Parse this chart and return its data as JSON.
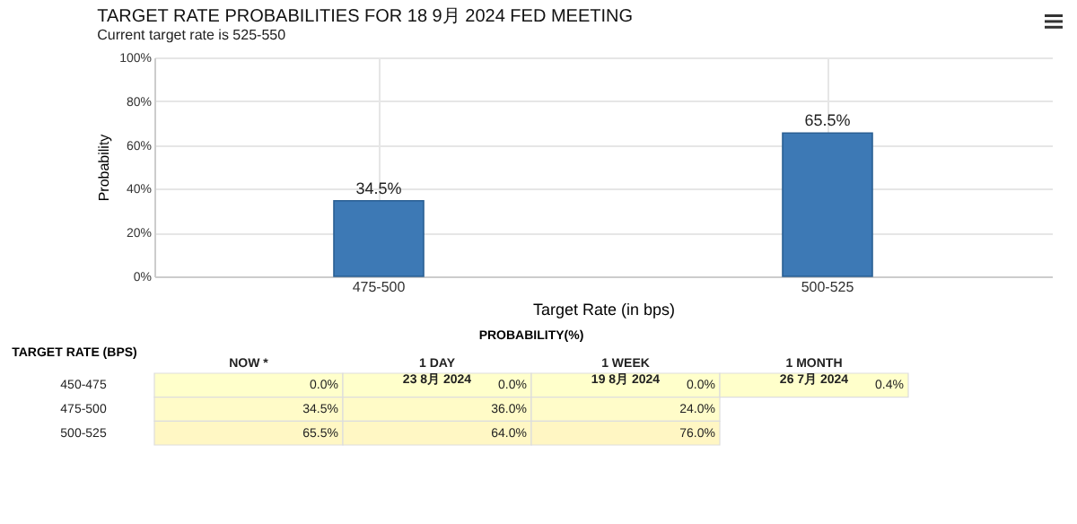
{
  "chart_data": [
    {
      "type": "bar",
      "title": "TARGET RATE PROBABILITIES FOR 18 9月 2024 FED MEETING",
      "subtitle": "Current target rate is 525-550",
      "xlabel": "Target Rate (in bps)",
      "ylabel": "Probability",
      "categories": [
        "475-500",
        "500-525"
      ],
      "values": [
        34.5,
        65.5
      ],
      "color": "#3d79b5",
      "value_labels": [
        "34.5%",
        "65.5%"
      ],
      "ylim": [
        0,
        100
      ],
      "yticks": [
        {
          "value": 0,
          "label": "0%"
        },
        {
          "value": 20,
          "label": "20%"
        },
        {
          "value": 40,
          "label": "40%"
        },
        {
          "value": 60,
          "label": "60%"
        },
        {
          "value": 80,
          "label": "80%"
        },
        {
          "value": 100,
          "label": "100%"
        }
      ],
      "grid": true
    },
    {
      "type": "heatmap",
      "title": "PROBABILITY(%)",
      "ylabel": "TARGET RATE (BPS)",
      "categories": [
        "NOW *",
        "1 DAY\n23 8月 2024",
        "1 WEEK\n19 8月 2024",
        "1 MONTH\n26 7月 2024"
      ],
      "y_categories": [
        "450-475",
        "475-500",
        "500-525"
      ],
      "cells": [
        [
          0.0,
          0.0,
          0.0,
          0.4
        ],
        [
          34.5,
          36.0,
          24.0,
          null
        ],
        [
          65.5,
          64.0,
          76.0,
          null
        ]
      ],
      "cell_labels": [
        [
          "0.0%",
          "0.0%",
          "0.0%",
          "0.4%"
        ],
        [
          "34.5%",
          "36.0%",
          "24.0%",
          null
        ],
        [
          "65.5%",
          "64.0%",
          "76.0%",
          null
        ]
      ]
    }
  ]
}
